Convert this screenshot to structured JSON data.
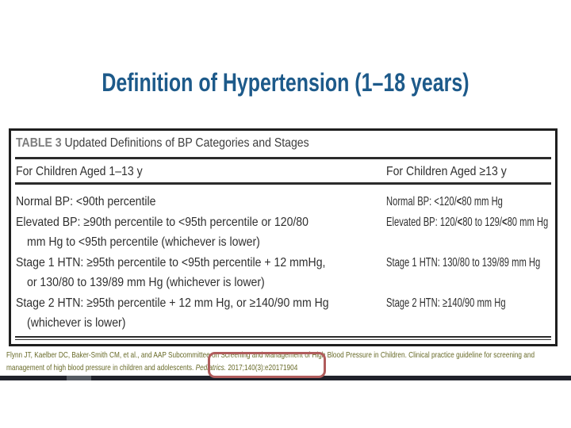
{
  "slide": {
    "title": "Definition of Hypertension (1–18 years)"
  },
  "table": {
    "label": "TABLE 3",
    "heading": "Updated Definitions of BP Categories and Stages",
    "columns": {
      "left_header": "For Children Aged 1–13 y",
      "right_header": "For Children Aged ≥13 y"
    },
    "rows": [
      {
        "left_lines": [
          "Normal BP: <90th percentile"
        ],
        "right_segments": [
          {
            "text": "Normal BP: <120/"
          },
          {
            "text": "<",
            "bold": true
          },
          {
            "text": "80 mm Hg"
          }
        ]
      },
      {
        "left_lines": [
          "Elevated BP: ≥90th percentile to <95th percentile or 120/80",
          "mm Hg to <95th percentile (whichever is lower)"
        ],
        "right_segments": [
          {
            "text": "Elevated BP: 120/"
          },
          {
            "text": "<",
            "bold": true
          },
          {
            "text": "80 to 129/"
          },
          {
            "text": "<",
            "bold": true
          },
          {
            "text": "80 mm Hg"
          }
        ]
      },
      {
        "left_lines": [
          "Stage 1 HTN: ≥95th percentile to <95th percentile + 12 mmHg,",
          "or 130/80 to 139/89 mm Hg (whichever is lower)"
        ],
        "right_segments": [
          {
            "text": "Stage 1 HTN: 130/80 to 139/89 mm Hg"
          }
        ]
      },
      {
        "left_lines": [
          "Stage 2 HTN: ≥95th percentile + 12 mm Hg, or ≥140/90 mm Hg",
          "(whichever is lower)"
        ],
        "right_segments": [
          {
            "text": "Stage 2 HTN: ≥140/90 mm Hg"
          }
        ]
      }
    ]
  },
  "citation": {
    "line1_segments": [
      {
        "text": "Flynn JT, Kaelber DC, Baker-Smith CM, et al., and AAP Subcommittee on Screening and Management of High Blood Pressure in Children. Clinical practice guideline for screening and"
      }
    ],
    "line2_segments": [
      {
        "text": "management of high blood pressure in children and adolescents. "
      },
      {
        "text": "Pediatrics.",
        "italic": true
      },
      {
        "text": " 2017;140(3):e20171904"
      }
    ],
    "highlighted_text": "Pediatrics. 2017;140(3):e20171904"
  },
  "colors": {
    "title_blue": "#1d5a8a",
    "table_text": "#2f2f2f",
    "table_label_gray": "#7d7d7d",
    "citation_olive": "#686a28",
    "highlight_red": "#b05c5c",
    "footer_bar_dark": "#20222b",
    "footer_bar_gray": "#565b63"
  }
}
